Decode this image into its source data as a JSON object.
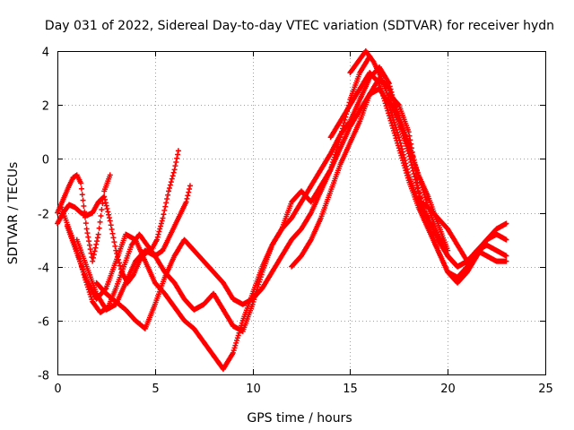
{
  "chart_data": {
    "type": "scatter",
    "title": "Day 031 of 2022, Sidereal Day-to-day VTEC variation (SDTVAR) for receiver hydn",
    "xlabel": "GPS time / hours",
    "ylabel": "SDTVAR / TECUs",
    "xlim": [
      0,
      25
    ],
    "ylim": [
      -8,
      4
    ],
    "xticks": [
      0,
      5,
      10,
      15,
      20,
      25
    ],
    "yticks": [
      -8,
      -6,
      -4,
      -2,
      0,
      2,
      4
    ],
    "grid": true,
    "marker": "plus",
    "colors": {
      "series": "#ff0000",
      "grid": "#a0a0a0",
      "frame": "#000000"
    },
    "series": [
      {
        "x": [
          0,
          0.3,
          0.6,
          0.9,
          1.2,
          1.5,
          1.8,
          2.1,
          2.4,
          2.7,
          3.0,
          3.3,
          3.6,
          3.9,
          4.2,
          4.5,
          4.8,
          5.1,
          5.4,
          5.7,
          6.0,
          6.2
        ],
        "y": [
          -2.4,
          -2.0,
          -1.7,
          -1.8,
          -2.0,
          -2.1,
          -2.0,
          -1.6,
          -1.4,
          -2.3,
          -3.4,
          -4.2,
          -4.6,
          -4.3,
          -3.8,
          -3.5,
          -3.4,
          -3.0,
          -2.2,
          -1.2,
          -0.4,
          0.3
        ]
      },
      {
        "x": [
          0,
          0.3,
          0.6,
          0.8,
          1.0,
          1.2,
          1.5,
          1.8,
          2.1,
          2.4,
          2.7
        ],
        "y": [
          -2.0,
          -1.5,
          -1.0,
          -0.7,
          -0.6,
          -0.9,
          -2.6,
          -3.8,
          -2.8,
          -1.2,
          -0.6
        ]
      },
      {
        "x": [
          0.2,
          0.6,
          1.0,
          1.4,
          1.8,
          2.2,
          2.6,
          3.0,
          3.4,
          3.8,
          4.2,
          4.6,
          5.0,
          5.4,
          5.8,
          6.2,
          6.6,
          6.8
        ],
        "y": [
          -1.8,
          -2.6,
          -3.4,
          -4.4,
          -5.3,
          -5.7,
          -5.5,
          -4.8,
          -4.0,
          -3.2,
          -2.8,
          -3.2,
          -3.6,
          -3.4,
          -2.8,
          -2.2,
          -1.6,
          -1.0
        ]
      },
      {
        "x": [
          0.5,
          1.0,
          1.5,
          2.0,
          2.5,
          3.0,
          3.5,
          4.0,
          4.5,
          5.0,
          5.5,
          6.0,
          6.5,
          7.0,
          7.5,
          8.0,
          8.5,
          9.0,
          9.5,
          10.0,
          10.5,
          11.0,
          11.5,
          12.0,
          12.5,
          13.0,
          13.5,
          14.0,
          14.5,
          15.0,
          15.5,
          16.0
        ],
        "y": [
          -2.5,
          -3.5,
          -4.5,
          -5.2,
          -4.8,
          -3.8,
          -2.8,
          -3.0,
          -3.8,
          -4.6,
          -5.0,
          -5.5,
          -6.0,
          -6.3,
          -6.8,
          -7.3,
          -7.8,
          -7.2,
          -6.0,
          -5.0,
          -4.0,
          -3.2,
          -2.6,
          -1.6,
          -1.2,
          -1.6,
          -1.0,
          -0.4,
          0.8,
          2.2,
          3.2,
          3.8
        ]
      },
      {
        "x": [
          1.0,
          1.5,
          2.0,
          2.5,
          3.0,
          3.5,
          4.0,
          4.5,
          5.0,
          5.5,
          6.0,
          6.5,
          7.0,
          7.5,
          8.0,
          8.5,
          9.0,
          9.5,
          10.0,
          10.5,
          11.0,
          11.5,
          12.0,
          12.5,
          13.0,
          13.5,
          14.0,
          14.5,
          15.0,
          15.5,
          16.0,
          16.5,
          17.0,
          17.5,
          18.0,
          18.5,
          19.0,
          19.5,
          20.0,
          20.5,
          21.0,
          21.5,
          22.0,
          22.5,
          23.0
        ],
        "y": [
          -3.0,
          -4.0,
          -5.0,
          -5.6,
          -5.4,
          -4.6,
          -3.8,
          -3.4,
          -3.6,
          -4.2,
          -4.6,
          -5.2,
          -5.6,
          -5.4,
          -5.0,
          -5.6,
          -6.2,
          -6.4,
          -5.4,
          -4.2,
          -3.2,
          -2.6,
          -2.2,
          -1.6,
          -1.0,
          -0.4,
          0.2,
          0.9,
          1.4,
          2.2,
          3.0,
          3.4,
          2.8,
          1.4,
          0.2,
          -1.2,
          -2.4,
          -3.4,
          -4.2,
          -4.4,
          -4.0,
          -3.4,
          -3.0,
          -2.8,
          -3.0
        ]
      },
      {
        "x": [
          2.0,
          2.5,
          3.0,
          3.5,
          4.0,
          4.5,
          5.0,
          5.5,
          6.0,
          6.5,
          7.0,
          7.5,
          8.0,
          8.5,
          9.0,
          9.5,
          10.0,
          10.5,
          11.0,
          11.5,
          12.0,
          12.5,
          13.0,
          13.5,
          14.0,
          14.5,
          15.0,
          15.5,
          16.0,
          16.5,
          17.0,
          17.5,
          18.0,
          18.5,
          19.0,
          19.5,
          20.0,
          20.5,
          21.0,
          21.5,
          22.0,
          22.5,
          23.0
        ],
        "y": [
          -4.6,
          -5.0,
          -5.3,
          -5.6,
          -6.0,
          -6.3,
          -5.4,
          -4.4,
          -3.6,
          -3.0,
          -3.4,
          -3.8,
          -4.2,
          -4.6,
          -5.2,
          -5.4,
          -5.2,
          -4.8,
          -4.2,
          -3.6,
          -3.0,
          -2.6,
          -2.0,
          -1.2,
          -0.4,
          0.4,
          1.2,
          1.8,
          2.4,
          2.6,
          2.0,
          0.8,
          -0.6,
          -1.6,
          -2.2,
          -3.0,
          -3.6,
          -4.0,
          -3.8,
          -3.4,
          -3.2,
          -3.4,
          -3.6
        ]
      },
      {
        "x": [
          12.0,
          12.5,
          13.0,
          13.5,
          14.0,
          14.5,
          15.0,
          15.5,
          16.0,
          16.5,
          17.0,
          17.5,
          18.0,
          18.5,
          19.0,
          19.5,
          20.0,
          20.5,
          21.0,
          21.5,
          22.0,
          22.5,
          23.0
        ],
        "y": [
          -4.0,
          -3.6,
          -3.0,
          -2.2,
          -1.2,
          -0.2,
          0.6,
          1.4,
          2.4,
          3.0,
          2.6,
          1.6,
          0.6,
          -0.6,
          -1.8,
          -2.8,
          -3.6,
          -4.0,
          -3.8,
          -3.4,
          -3.6,
          -3.8,
          -3.8
        ]
      },
      {
        "x": [
          14.0,
          14.5,
          15.0,
          15.5,
          16.0,
          16.5,
          17.0,
          17.5,
          18.0,
          18.5,
          19.0,
          19.5,
          20.0,
          20.5,
          21.0,
          21.5,
          22.0,
          22.5,
          23.0
        ],
        "y": [
          0.8,
          1.4,
          2.0,
          2.6,
          3.2,
          2.8,
          1.6,
          0.4,
          -0.8,
          -1.8,
          -2.6,
          -3.4,
          -4.2,
          -4.6,
          -4.2,
          -3.6,
          -3.0,
          -2.6,
          -2.4
        ]
      },
      {
        "x": [
          17.0,
          17.5,
          18.0,
          18.3,
          18.6,
          19.0,
          19.5,
          20.0,
          20.5,
          21.0
        ],
        "y": [
          2.4,
          2.0,
          1.0,
          -0.2,
          -1.6,
          -1.8,
          -2.2,
          -2.6,
          -3.2,
          -3.8
        ]
      },
      {
        "x": [
          15.0,
          15.4,
          15.8,
          16.2,
          16.6,
          17.0,
          17.5,
          18.0,
          18.5,
          19.0,
          19.5,
          20.0
        ],
        "y": [
          3.2,
          3.6,
          4.0,
          3.6,
          3.0,
          2.2,
          1.4,
          0.4,
          -0.6,
          -1.4,
          -2.4,
          -3.4
        ]
      }
    ]
  }
}
